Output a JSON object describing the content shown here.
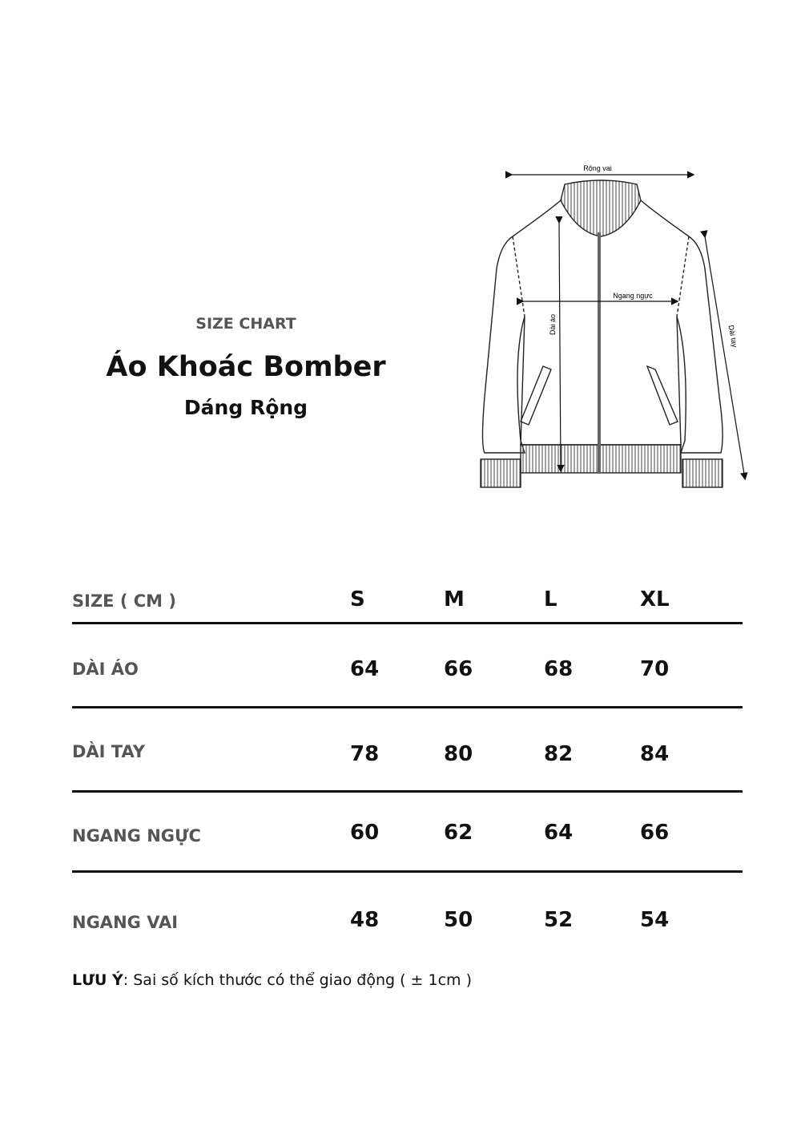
{
  "header": {
    "kicker": "SIZE CHART",
    "title": "Áo Khoác Bomber",
    "subtitle": "Dáng Rộng"
  },
  "diagram": {
    "shoulder": "Rộng vai",
    "chest": "Ngang ngực",
    "length": "Dài áo",
    "sleeve": "Dài tay"
  },
  "table": {
    "header_label": "SIZE ( CM )",
    "sizes": [
      "S",
      "M",
      "L",
      "XL"
    ],
    "rows": [
      {
        "label": "DÀI ÁO",
        "values": [
          "64",
          "66",
          "68",
          "70"
        ]
      },
      {
        "label": "DÀI TAY",
        "values": [
          "78",
          "80",
          "82",
          "84"
        ]
      },
      {
        "label": "NGANG NGỰC",
        "values": [
          "60",
          "62",
          "64",
          "66"
        ]
      },
      {
        "label": "NGANG VAI",
        "values": [
          "48",
          "50",
          "52",
          "54"
        ]
      }
    ]
  },
  "note": {
    "label": "LƯU Ý",
    "text": ": Sai số kích thước có thể giao động ( ± 1cm )"
  }
}
